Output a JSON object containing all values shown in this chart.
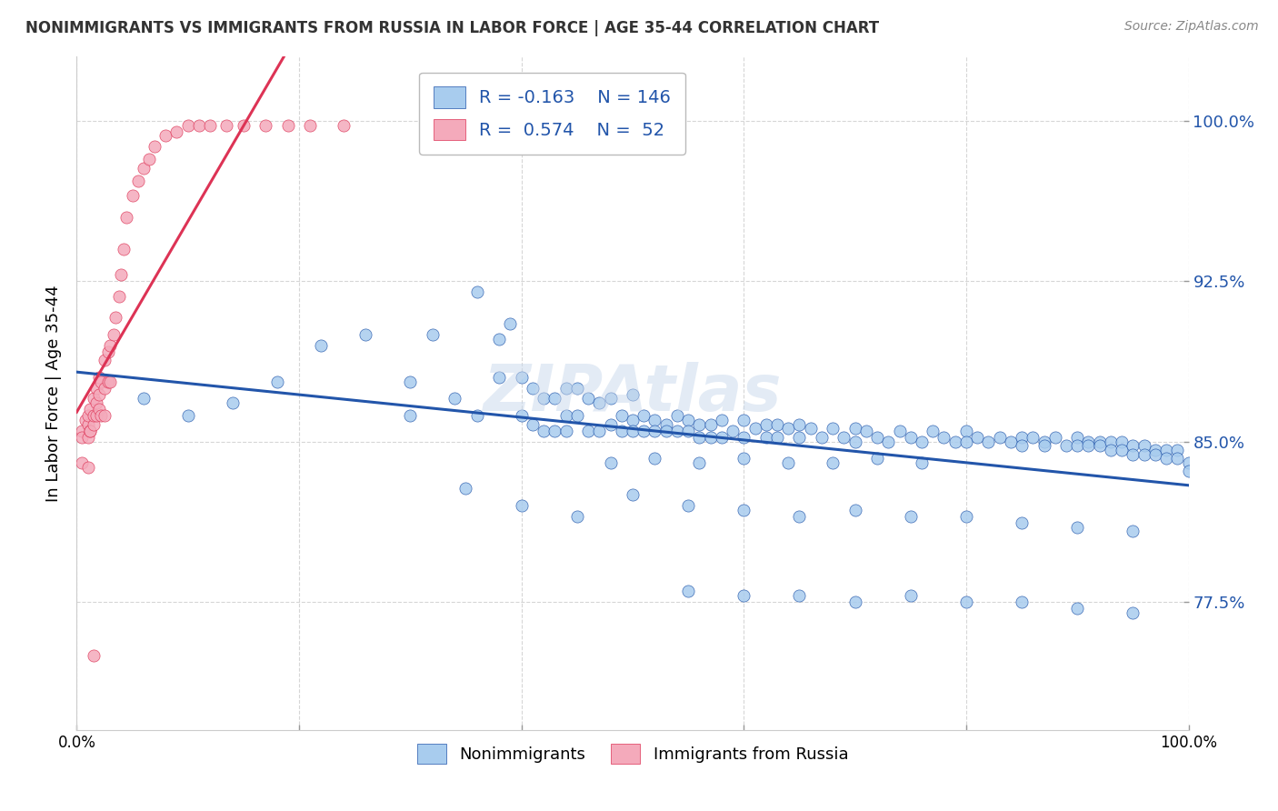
{
  "title": "NONIMMIGRANTS VS IMMIGRANTS FROM RUSSIA IN LABOR FORCE | AGE 35-44 CORRELATION CHART",
  "source": "Source: ZipAtlas.com",
  "ylabel": "In Labor Force | Age 35-44",
  "xmin": 0.0,
  "xmax": 1.0,
  "ymin": 0.715,
  "ymax": 1.03,
  "yticks": [
    0.775,
    0.85,
    0.925,
    1.0
  ],
  "ytick_labels": [
    "77.5%",
    "85.0%",
    "92.5%",
    "100.0%"
  ],
  "xticks": [
    0.0,
    0.2,
    0.4,
    0.6,
    0.8,
    1.0
  ],
  "xtick_labels": [
    "0.0%",
    "",
    "",
    "",
    "",
    "100.0%"
  ],
  "blue_R": -0.163,
  "blue_N": 146,
  "pink_R": 0.574,
  "pink_N": 52,
  "blue_color": "#A8CCEE",
  "pink_color": "#F4AABB",
  "blue_line_color": "#2255AA",
  "pink_line_color": "#DD3355",
  "title_color": "#333333",
  "axis_label_color": "#2255AA",
  "legend_text_color": "#2255AA",
  "watermark_color": "#C8D8EC",
  "blue_scatter_x": [
    0.06,
    0.1,
    0.14,
    0.18,
    0.22,
    0.26,
    0.3,
    0.3,
    0.32,
    0.34,
    0.36,
    0.36,
    0.38,
    0.38,
    0.39,
    0.4,
    0.4,
    0.41,
    0.41,
    0.42,
    0.42,
    0.43,
    0.43,
    0.44,
    0.44,
    0.44,
    0.45,
    0.45,
    0.46,
    0.46,
    0.47,
    0.47,
    0.48,
    0.48,
    0.49,
    0.49,
    0.5,
    0.5,
    0.5,
    0.51,
    0.51,
    0.52,
    0.52,
    0.53,
    0.53,
    0.54,
    0.54,
    0.55,
    0.55,
    0.56,
    0.56,
    0.57,
    0.57,
    0.58,
    0.58,
    0.59,
    0.6,
    0.6,
    0.61,
    0.62,
    0.62,
    0.63,
    0.63,
    0.64,
    0.65,
    0.65,
    0.66,
    0.67,
    0.68,
    0.69,
    0.7,
    0.7,
    0.71,
    0.72,
    0.73,
    0.74,
    0.75,
    0.76,
    0.77,
    0.78,
    0.79,
    0.8,
    0.8,
    0.81,
    0.82,
    0.83,
    0.84,
    0.85,
    0.85,
    0.86,
    0.87,
    0.87,
    0.88,
    0.89,
    0.9,
    0.9,
    0.91,
    0.91,
    0.92,
    0.92,
    0.93,
    0.93,
    0.94,
    0.94,
    0.95,
    0.95,
    0.96,
    0.96,
    0.97,
    0.97,
    0.98,
    0.98,
    0.99,
    0.99,
    1.0,
    1.0,
    0.35,
    0.4,
    0.45,
    0.5,
    0.55,
    0.6,
    0.65,
    0.7,
    0.75,
    0.8,
    0.85,
    0.9,
    0.95,
    0.55,
    0.6,
    0.65,
    0.7,
    0.75,
    0.8,
    0.85,
    0.9,
    0.95,
    0.48,
    0.52,
    0.56,
    0.6,
    0.64,
    0.68,
    0.72,
    0.76
  ],
  "blue_scatter_y": [
    0.87,
    0.862,
    0.868,
    0.878,
    0.895,
    0.9,
    0.878,
    0.862,
    0.9,
    0.87,
    0.92,
    0.862,
    0.898,
    0.88,
    0.905,
    0.88,
    0.862,
    0.875,
    0.858,
    0.87,
    0.855,
    0.87,
    0.855,
    0.875,
    0.862,
    0.855,
    0.875,
    0.862,
    0.87,
    0.855,
    0.868,
    0.855,
    0.87,
    0.858,
    0.862,
    0.855,
    0.872,
    0.86,
    0.855,
    0.862,
    0.855,
    0.86,
    0.855,
    0.858,
    0.855,
    0.862,
    0.855,
    0.86,
    0.855,
    0.858,
    0.852,
    0.858,
    0.852,
    0.86,
    0.852,
    0.855,
    0.86,
    0.852,
    0.856,
    0.858,
    0.852,
    0.858,
    0.852,
    0.856,
    0.858,
    0.852,
    0.856,
    0.852,
    0.856,
    0.852,
    0.856,
    0.85,
    0.855,
    0.852,
    0.85,
    0.855,
    0.852,
    0.85,
    0.855,
    0.852,
    0.85,
    0.855,
    0.85,
    0.852,
    0.85,
    0.852,
    0.85,
    0.852,
    0.848,
    0.852,
    0.85,
    0.848,
    0.852,
    0.848,
    0.852,
    0.848,
    0.85,
    0.848,
    0.85,
    0.848,
    0.85,
    0.846,
    0.85,
    0.846,
    0.848,
    0.844,
    0.848,
    0.844,
    0.846,
    0.844,
    0.846,
    0.842,
    0.846,
    0.842,
    0.84,
    0.836,
    0.828,
    0.82,
    0.815,
    0.825,
    0.82,
    0.818,
    0.815,
    0.818,
    0.815,
    0.815,
    0.812,
    0.81,
    0.808,
    0.78,
    0.778,
    0.778,
    0.775,
    0.778,
    0.775,
    0.775,
    0.772,
    0.77,
    0.84,
    0.842,
    0.84,
    0.842,
    0.84,
    0.84,
    0.842,
    0.84
  ],
  "pink_scatter_x": [
    0.005,
    0.005,
    0.008,
    0.01,
    0.01,
    0.01,
    0.012,
    0.012,
    0.012,
    0.015,
    0.015,
    0.015,
    0.018,
    0.018,
    0.018,
    0.02,
    0.02,
    0.02,
    0.022,
    0.022,
    0.025,
    0.025,
    0.025,
    0.028,
    0.028,
    0.03,
    0.03,
    0.033,
    0.035,
    0.038,
    0.04,
    0.042,
    0.045,
    0.05,
    0.055,
    0.06,
    0.065,
    0.07,
    0.08,
    0.09,
    0.1,
    0.11,
    0.12,
    0.135,
    0.15,
    0.17,
    0.19,
    0.21,
    0.24,
    0.005,
    0.01,
    0.015
  ],
  "pink_scatter_y": [
    0.855,
    0.852,
    0.86,
    0.858,
    0.852,
    0.862,
    0.855,
    0.865,
    0.855,
    0.87,
    0.858,
    0.862,
    0.875,
    0.868,
    0.862,
    0.872,
    0.88,
    0.865,
    0.878,
    0.862,
    0.888,
    0.875,
    0.862,
    0.892,
    0.878,
    0.895,
    0.878,
    0.9,
    0.908,
    0.918,
    0.928,
    0.94,
    0.955,
    0.965,
    0.972,
    0.978,
    0.982,
    0.988,
    0.993,
    0.995,
    0.998,
    0.998,
    0.998,
    0.998,
    0.998,
    0.998,
    0.998,
    0.998,
    0.998,
    0.84,
    0.838,
    0.75
  ]
}
